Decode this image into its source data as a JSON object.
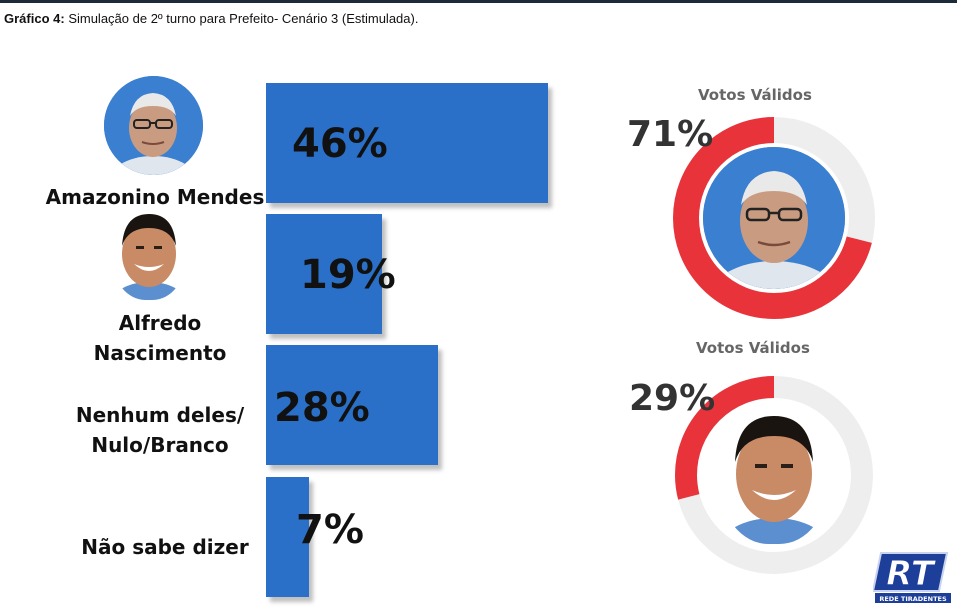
{
  "title": {
    "prefix": "Gráfico 4:",
    "text": "Simulação de 2º turno para Prefeito- Cenário 3 (Estimulada)."
  },
  "chart_data": [
    {
      "type": "bar",
      "orientation": "horizontal",
      "categories": [
        "Amazonino Mendes",
        "Alfredo Nascimento",
        "Nenhum deles/ Nulo/Branco",
        "Não sabe dizer"
      ],
      "values": [
        46,
        19,
        28,
        7
      ],
      "value_labels": [
        "46%",
        "19%",
        "28%",
        "7%"
      ],
      "unit": "%",
      "xlim": [
        0,
        46
      ],
      "color": "#2a70c8"
    },
    {
      "type": "pie",
      "style": "donut",
      "title": "Votos Válidos",
      "value": 71,
      "value_label": "71%",
      "candidate": "Amazonino Mendes",
      "colors": {
        "fill": "#e8333a",
        "track": "#eeeeee"
      }
    },
    {
      "type": "pie",
      "style": "donut",
      "title": "Votos Válidos",
      "value": 29,
      "value_label": "29%",
      "candidate": "Alfredo Nascimento",
      "colors": {
        "fill": "#e8333a",
        "track": "#eeeeee"
      }
    }
  ],
  "labels": {
    "cat1": "Amazonino Mendes",
    "cat2_line1": "Alfredo",
    "cat2_line2": "Nascimento",
    "cat3_line1": "Nenhum deles/",
    "cat3_line2": "Nulo/Branco",
    "cat4": "Não sabe dizer"
  },
  "logo": {
    "mark": "RT",
    "text": "REDE TIRADENTES",
    "colors": {
      "fill": "#1d3f9a",
      "edge": "#ffffff"
    }
  },
  "icons": {
    "avatar1": "person-photo-amazonino",
    "avatar2": "person-photo-alfredo"
  }
}
